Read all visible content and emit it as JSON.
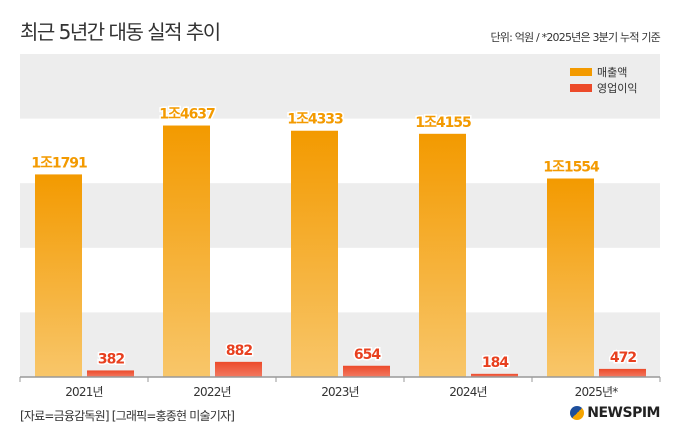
{
  "title": "최근 5년간 대동 실적 추이",
  "unit_note": "단위: 억원 / *2025년은 3분기 누적 기준",
  "source": "[자료=금융감독원] [그래픽=홍종현 미술기자]",
  "logo": "NEWSPIM",
  "colors": {
    "sales": "#f39a00",
    "profit": "#ec4a2a",
    "label_sales": "#f39a00",
    "label_profit": "#e8401f",
    "band": "#ededed"
  },
  "chart_data": {
    "type": "bar",
    "categories": [
      "2021년",
      "2022년",
      "2023년",
      "2024년",
      "2025년*"
    ],
    "series": [
      {
        "name": "매출액",
        "values": [
          11791,
          14637,
          14333,
          14155,
          11554
        ],
        "labels": [
          "1조1791",
          "1조4637",
          "1조4333",
          "1조4155",
          "1조1554"
        ]
      },
      {
        "name": "영업이익",
        "values": [
          382,
          882,
          654,
          184,
          472
        ],
        "labels": [
          "382",
          "882",
          "654",
          "184",
          "472"
        ]
      }
    ],
    "ylim": [
      0,
      18800
    ],
    "legend": "top-right",
    "grid": "alternating bands"
  }
}
